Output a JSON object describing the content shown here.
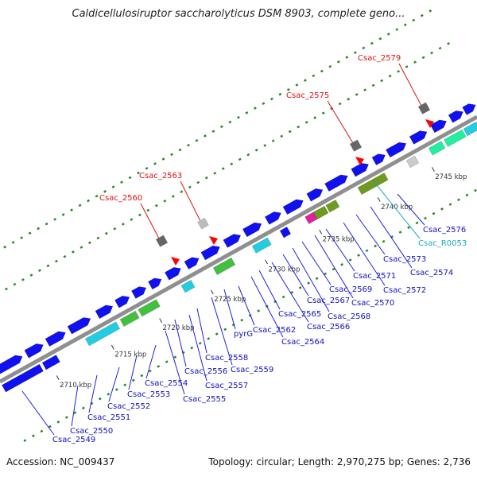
{
  "title": "Caldicellulosiruptor saccharolyticus DSM 8903, complete geno...",
  "footer": {
    "accession": "Accession: NC_009437",
    "topology": "Topology: circular; Length: 2,970,275 bp; Genes: 2,736"
  },
  "colors": {
    "backbone": "#8f8f8f",
    "forward_gene": "#1010f0",
    "tick_dot": "#2a8a2a",
    "highlight_label": "#e01010",
    "gene_label": "#1010c0",
    "rna_label": "#20a8c8"
  },
  "scale_labels": [
    "2710 kbp",
    "2715 kbp",
    "2720 kbp",
    "2725 kbp",
    "2730 kbp",
    "2735 kbp",
    "2740 kbp",
    "2745 kbp"
  ],
  "highlighted_genes": [
    "Csac_2560",
    "Csac_2563",
    "Csac_2575",
    "Csac_2579"
  ],
  "gene_labels": [
    "Csac_2549",
    "Csac_2550",
    "Csac_2551",
    "Csac_2552",
    "Csac_2553",
    "Csac_2554",
    "Csac_2555",
    "Csac_2556",
    "Csac_2557",
    "Csac_2558",
    "Csac_2559",
    "pyrG",
    "Csac_2562",
    "Csac_2564",
    "Csac_2565",
    "Csac_2566",
    "Csac_2567",
    "Csac_2568",
    "Csac_2569",
    "Csac_2570",
    "Csac_2571",
    "Csac_2572",
    "Csac_2573",
    "Csac_2574",
    "Csac_R0053",
    "Csac_2576"
  ]
}
